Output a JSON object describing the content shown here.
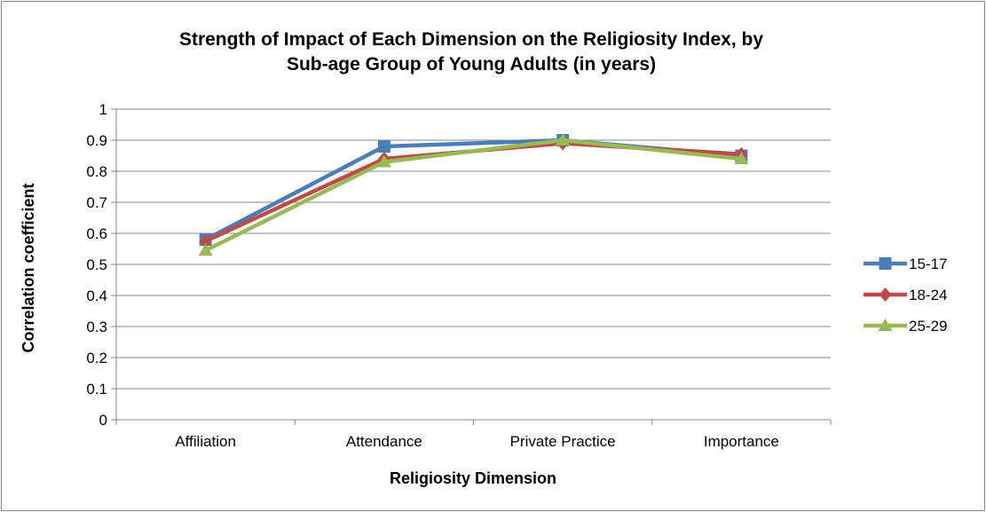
{
  "chart_data": {
    "type": "line",
    "title_lines": [
      "Strength of Impact of Each Dimension on the Religiosity Index, by",
      "Sub-age Group of Young Adults (in years)"
    ],
    "xlabel": "Religiosity Dimension",
    "ylabel": "Correlation coefficient",
    "categories": [
      "Affiliation",
      "Attendance",
      "Private Practice",
      "Importance"
    ],
    "ylim": [
      0,
      1
    ],
    "yticks": [
      "0",
      "0.1",
      "0.2",
      "0.3",
      "0.4",
      "0.5",
      "0.6",
      "0.7",
      "0.8",
      "0.9",
      "1"
    ],
    "grid": true,
    "legend_position": "right",
    "series": [
      {
        "name": "15-17",
        "values": [
          0.58,
          0.88,
          0.9,
          0.85
        ],
        "color": "#4a7ebb",
        "marker": "square"
      },
      {
        "name": "18-24",
        "values": [
          0.575,
          0.84,
          0.89,
          0.855
        ],
        "color": "#be4b48",
        "marker": "diamond"
      },
      {
        "name": "25-29",
        "values": [
          0.545,
          0.83,
          0.9,
          0.84
        ],
        "color": "#98b954",
        "marker": "triangle"
      }
    ]
  }
}
